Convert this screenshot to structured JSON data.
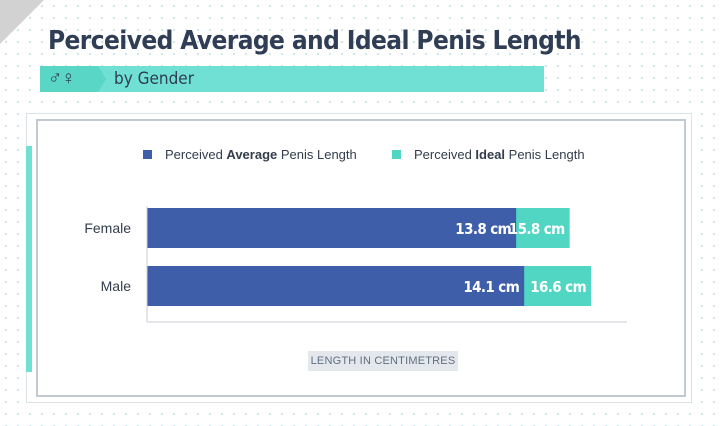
{
  "title": "Perceived Average and Ideal Penis Length",
  "subtitle": "by Gender",
  "gender_icon": "♂♀",
  "colors": {
    "average": "#3e5ea9",
    "ideal": "#52d6c4",
    "accent": "#6fe0d3",
    "text": "#2f3d55"
  },
  "legend": [
    {
      "pre": "Perceived ",
      "bold": "Average",
      "post": " Penis Length"
    },
    {
      "pre": "Perceived ",
      "bold": "Ideal",
      "post": " Penis Length"
    }
  ],
  "chart_data": {
    "type": "bar",
    "orientation": "horizontal",
    "layout": "overlapping",
    "categories": [
      "Female",
      "Male"
    ],
    "series": [
      {
        "name": "Perceived Average Penis Length",
        "values": [
          13.8,
          14.1
        ],
        "labels": [
          "13.8 cm",
          "14.1 cm"
        ]
      },
      {
        "name": "Perceived Ideal Penis Length",
        "values": [
          15.8,
          16.6
        ],
        "labels": [
          "15.8 cm",
          "16.6 cm"
        ]
      }
    ],
    "xlabel": "LENGTH IN CENTIMETRES",
    "xlim": [
      0,
      18
    ],
    "grid": false,
    "legend_position": "top"
  }
}
